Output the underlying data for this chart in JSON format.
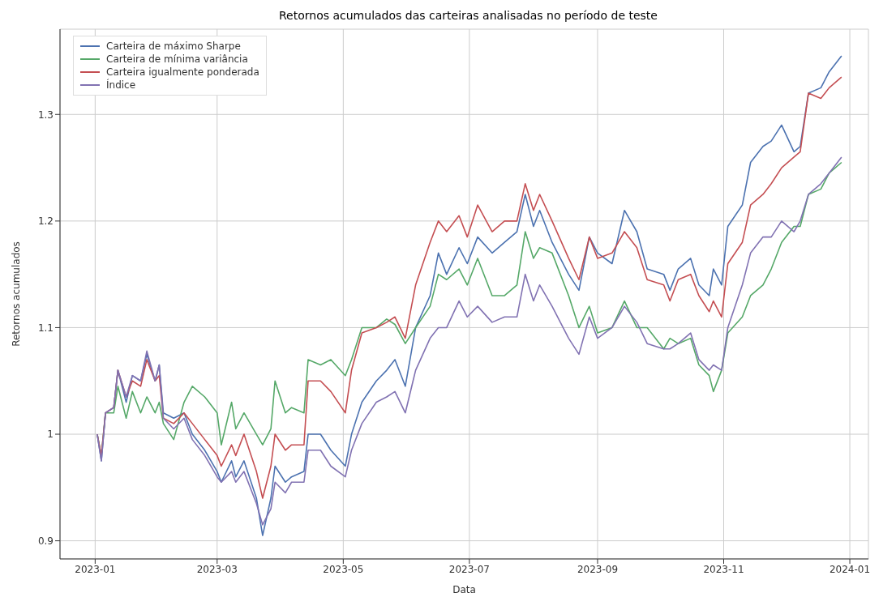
{
  "chart_data": {
    "type": "line",
    "title": "Retornos acumulados das carteiras analisadas no período de teste",
    "xlabel": "Data",
    "ylabel": "Retornos acumulados",
    "x": [
      "2023-01-02",
      "2023-01-04",
      "2023-01-06",
      "2023-01-10",
      "2023-01-12",
      "2023-01-16",
      "2023-01-19",
      "2023-01-23",
      "2023-01-26",
      "2023-01-30",
      "2023-02-01",
      "2023-02-03",
      "2023-02-08",
      "2023-02-13",
      "2023-02-17",
      "2023-02-23",
      "2023-03-01",
      "2023-03-03",
      "2023-03-08",
      "2023-03-10",
      "2023-03-14",
      "2023-03-20",
      "2023-03-23",
      "2023-03-27",
      "2023-03-29",
      "2023-04-03",
      "2023-04-06",
      "2023-04-12",
      "2023-04-14",
      "2023-04-20",
      "2023-04-25",
      "2023-05-02",
      "2023-05-05",
      "2023-05-10",
      "2023-05-17",
      "2023-05-22",
      "2023-05-26",
      "2023-05-31",
      "2023-06-05",
      "2023-06-12",
      "2023-06-16",
      "2023-06-20",
      "2023-06-26",
      "2023-06-30",
      "2023-07-05",
      "2023-07-12",
      "2023-07-18",
      "2023-07-24",
      "2023-07-28",
      "2023-08-01",
      "2023-08-04",
      "2023-08-10",
      "2023-08-18",
      "2023-08-23",
      "2023-08-28",
      "2023-09-01",
      "2023-09-08",
      "2023-09-14",
      "2023-09-20",
      "2023-09-25",
      "2023-10-03",
      "2023-10-06",
      "2023-10-10",
      "2023-10-16",
      "2023-10-20",
      "2023-10-25",
      "2023-10-27",
      "2023-10-31",
      "2023-11-03",
      "2023-11-10",
      "2023-11-14",
      "2023-11-20",
      "2023-11-24",
      "2023-11-29",
      "2023-12-05",
      "2023-12-08",
      "2023-12-12",
      "2023-12-18",
      "2023-12-22",
      "2023-12-28"
    ],
    "series": [
      {
        "name": "Carteira de máximo Sharpe",
        "color": "#4c72b0",
        "values": [
          1.0,
          0.975,
          1.02,
          1.025,
          1.06,
          1.03,
          1.055,
          1.05,
          1.075,
          1.05,
          1.065,
          1.02,
          1.015,
          1.02,
          1.0,
          0.985,
          0.965,
          0.955,
          0.975,
          0.96,
          0.975,
          0.94,
          0.905,
          0.94,
          0.97,
          0.955,
          0.96,
          0.965,
          1.0,
          1.0,
          0.985,
          0.97,
          1.0,
          1.03,
          1.05,
          1.06,
          1.07,
          1.045,
          1.1,
          1.13,
          1.17,
          1.15,
          1.175,
          1.16,
          1.185,
          1.17,
          1.18,
          1.19,
          1.225,
          1.195,
          1.21,
          1.18,
          1.15,
          1.135,
          1.185,
          1.17,
          1.16,
          1.21,
          1.19,
          1.155,
          1.15,
          1.135,
          1.155,
          1.165,
          1.14,
          1.13,
          1.155,
          1.14,
          1.195,
          1.215,
          1.255,
          1.27,
          1.275,
          1.29,
          1.265,
          1.27,
          1.32,
          1.325,
          1.34,
          1.355
        ]
      },
      {
        "name": "Carteira de mínima variância",
        "color": "#55a868",
        "values": [
          1.0,
          0.98,
          1.02,
          1.02,
          1.045,
          1.015,
          1.04,
          1.02,
          1.035,
          1.02,
          1.03,
          1.01,
          0.995,
          1.03,
          1.045,
          1.035,
          1.02,
          0.99,
          1.03,
          1.005,
          1.02,
          1.0,
          0.99,
          1.005,
          1.05,
          1.02,
          1.025,
          1.02,
          1.07,
          1.065,
          1.07,
          1.055,
          1.07,
          1.1,
          1.1,
          1.108,
          1.103,
          1.085,
          1.1,
          1.12,
          1.15,
          1.145,
          1.155,
          1.14,
          1.165,
          1.13,
          1.13,
          1.14,
          1.19,
          1.165,
          1.175,
          1.17,
          1.13,
          1.1,
          1.12,
          1.095,
          1.1,
          1.125,
          1.1,
          1.1,
          1.08,
          1.09,
          1.085,
          1.09,
          1.065,
          1.055,
          1.04,
          1.06,
          1.095,
          1.11,
          1.13,
          1.14,
          1.155,
          1.18,
          1.195,
          1.195,
          1.225,
          1.23,
          1.245,
          1.255
        ]
      },
      {
        "name": "Carteira igualmente ponderada",
        "color": "#c44e52",
        "values": [
          1.0,
          0.98,
          1.02,
          1.025,
          1.06,
          1.035,
          1.05,
          1.045,
          1.07,
          1.05,
          1.055,
          1.015,
          1.01,
          1.02,
          1.01,
          0.995,
          0.98,
          0.97,
          0.99,
          0.98,
          1.0,
          0.965,
          0.94,
          0.97,
          1.0,
          0.985,
          0.99,
          0.99,
          1.05,
          1.05,
          1.04,
          1.02,
          1.06,
          1.095,
          1.1,
          1.105,
          1.11,
          1.09,
          1.14,
          1.18,
          1.2,
          1.19,
          1.205,
          1.185,
          1.215,
          1.19,
          1.2,
          1.2,
          1.235,
          1.21,
          1.225,
          1.2,
          1.165,
          1.145,
          1.185,
          1.165,
          1.17,
          1.19,
          1.175,
          1.145,
          1.14,
          1.125,
          1.145,
          1.15,
          1.13,
          1.115,
          1.125,
          1.11,
          1.16,
          1.18,
          1.215,
          1.225,
          1.235,
          1.25,
          1.26,
          1.265,
          1.32,
          1.315,
          1.325,
          1.335
        ]
      },
      {
        "name": "Índice",
        "color": "#8172b2",
        "values": [
          1.0,
          0.975,
          1.02,
          1.025,
          1.06,
          1.035,
          1.055,
          1.05,
          1.078,
          1.05,
          1.065,
          1.015,
          1.005,
          1.015,
          0.995,
          0.98,
          0.96,
          0.955,
          0.965,
          0.955,
          0.965,
          0.935,
          0.915,
          0.93,
          0.955,
          0.945,
          0.955,
          0.955,
          0.985,
          0.985,
          0.97,
          0.96,
          0.985,
          1.01,
          1.03,
          1.035,
          1.04,
          1.02,
          1.06,
          1.09,
          1.1,
          1.1,
          1.125,
          1.11,
          1.12,
          1.105,
          1.11,
          1.11,
          1.15,
          1.125,
          1.14,
          1.12,
          1.09,
          1.075,
          1.11,
          1.09,
          1.1,
          1.12,
          1.105,
          1.085,
          1.08,
          1.08,
          1.085,
          1.095,
          1.07,
          1.06,
          1.065,
          1.06,
          1.1,
          1.14,
          1.17,
          1.185,
          1.185,
          1.2,
          1.19,
          1.2,
          1.225,
          1.235,
          1.245,
          1.26
        ]
      }
    ],
    "xlim": [
      "2022-12-15",
      "2024-01-10"
    ],
    "xticks": [
      "2023-01",
      "2023-03",
      "2023-05",
      "2023-07",
      "2023-09",
      "2023-11",
      "2024-01"
    ],
    "ylim": [
      0.883,
      1.38
    ],
    "yticks": [
      0.9,
      1.0,
      1.1,
      1.2,
      1.3
    ],
    "grid": true,
    "legend": "top left",
    "marker": "none",
    "line_style": "solid"
  }
}
